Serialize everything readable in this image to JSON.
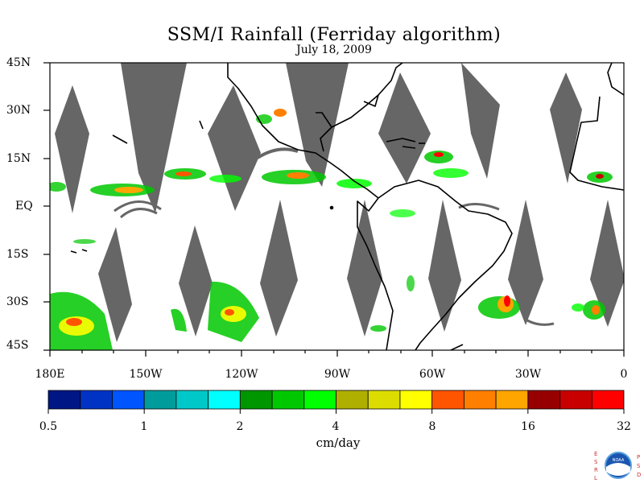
{
  "title": "SSM/I Rainfall (Ferriday algorithm)",
  "subtitle": "July 18, 2009",
  "map": {
    "lat_labels": [
      "45N",
      "30N",
      "15N",
      "EQ",
      "15S",
      "30S",
      "45S"
    ],
    "lon_labels": [
      "180E",
      "150W",
      "120W",
      "90W",
      "60W",
      "30W",
      "0"
    ],
    "extent": {
      "lon_min": -180,
      "lon_max": 0,
      "lat_min": -45,
      "lat_max": 45
    },
    "no_data_color": "#666666",
    "coastline_color": "#000000"
  },
  "colorbar": {
    "units": "cm/day",
    "tick_labels": [
      "0.5",
      "1",
      "2",
      "4",
      "8",
      "16",
      "32"
    ],
    "colors": [
      "#001685",
      "#0033C4",
      "#0055FF",
      "#009C9C",
      "#00C8C8",
      "#00FFFF",
      "#009600",
      "#00C800",
      "#00FF00",
      "#AFAF00",
      "#DCDC00",
      "#FFFF00",
      "#FF5500",
      "#FF8000",
      "#FFA500",
      "#960000",
      "#C80000",
      "#FF0000"
    ]
  },
  "logo": {
    "left_letters": [
      "E",
      "S",
      "R",
      "L"
    ],
    "right_letters": [
      "P",
      "S",
      "D"
    ],
    "center_text": "NOAA"
  }
}
